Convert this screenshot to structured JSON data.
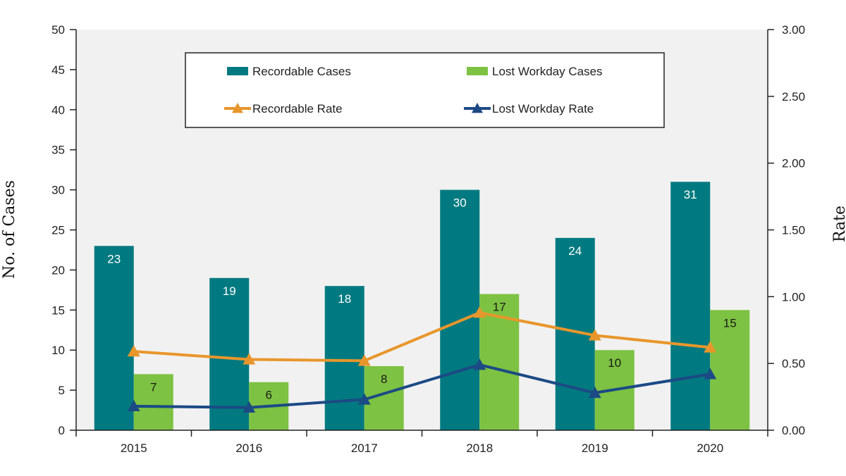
{
  "chart_data": {
    "type": "bar",
    "title": "",
    "categories": [
      "2015",
      "2016",
      "2017",
      "2018",
      "2019",
      "2020"
    ],
    "ylabel": "No. of Cases",
    "y2label": "Rate",
    "ylim": [
      0,
      50
    ],
    "y2lim": [
      0,
      3
    ],
    "yticks": [
      "0",
      "5",
      "10",
      "15",
      "20",
      "25",
      "30",
      "35",
      "40",
      "45",
      "50"
    ],
    "y2ticks": [
      "0.00",
      "0.50",
      "1.00",
      "1.50",
      "2.00",
      "2.50",
      "3.00"
    ],
    "grid": false,
    "legend_position": "top-center",
    "series": [
      {
        "name": "Recordable Cases",
        "kind": "bar",
        "axis": "left",
        "color": "#007A80",
        "label_color": "#ffffff",
        "values": [
          23,
          19,
          18,
          30,
          24,
          31
        ],
        "labels": [
          "23",
          "19",
          "18",
          "30",
          "24",
          "31"
        ]
      },
      {
        "name": "Lost Workday Cases",
        "kind": "bar",
        "axis": "left",
        "color": "#7DC242",
        "label_color": "#1a1a1a",
        "values": [
          7,
          6,
          8,
          17,
          10,
          15
        ],
        "labels": [
          "7",
          "6",
          "8",
          "17",
          "10",
          "15"
        ]
      },
      {
        "name": "Recordable Rate",
        "kind": "line",
        "axis": "right",
        "color": "#E8962B",
        "marker": "triangle",
        "values": [
          0.59,
          0.53,
          0.52,
          0.88,
          0.71,
          0.62
        ]
      },
      {
        "name": "Lost Workday Rate",
        "kind": "line",
        "axis": "right",
        "color": "#1C4A85",
        "marker": "triangle",
        "values": [
          0.18,
          0.17,
          0.23,
          0.49,
          0.28,
          0.42
        ]
      }
    ]
  }
}
